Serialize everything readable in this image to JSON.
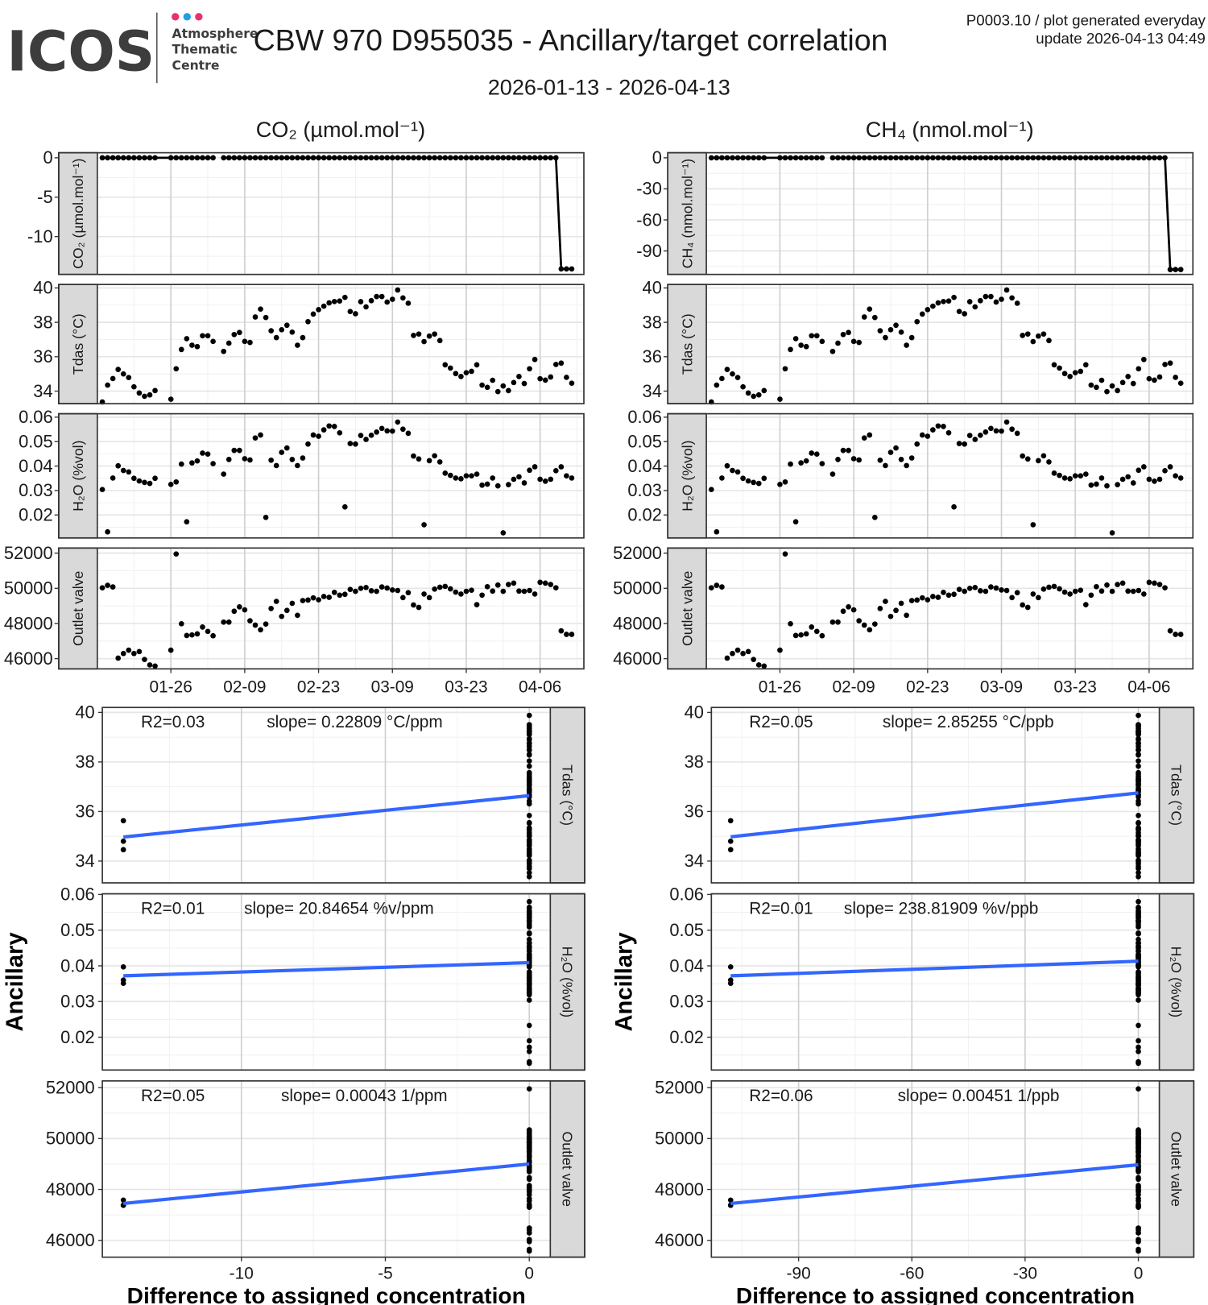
{
  "header": {
    "logo_text": "ICOS",
    "logo_sub": [
      "Atmosphere",
      "Thematic",
      "Centre"
    ],
    "logo_dot_colors": [
      "#e6336f",
      "#1fa0e3",
      "#e6336f"
    ],
    "title": "CBW 970 D955035 - Ancillary/target correlation",
    "date_range": "2026-01-13 - 2026-04-13",
    "meta_line1": "P0003.10 / plot generated everyday",
    "meta_line2": "update  2026-04-13 04:49"
  },
  "colors": {
    "points": "#000000",
    "fit_line": "#3366ff",
    "strip": "#d9d9d9",
    "border": "#333333"
  },
  "chart_data": {
    "type": "scatter",
    "time_x": {
      "start_date": "2026-01-13",
      "xlim_days": [
        -0.95,
        91.3
      ],
      "tick_days": [
        13,
        27,
        41,
        55,
        69,
        83
      ],
      "tick_labels": [
        "01-26",
        "02-09",
        "02-23",
        "03-09",
        "03-23",
        "04-06"
      ],
      "minor_days": [
        6,
        20,
        34,
        48,
        62,
        76,
        90
      ]
    },
    "days": [
      0,
      1,
      2,
      3,
      4,
      5,
      6,
      7,
      8,
      9,
      10,
      13,
      14,
      15,
      16,
      17,
      18,
      19,
      20,
      21,
      22,
      23,
      24,
      25,
      26,
      27,
      28,
      29,
      30,
      31,
      32,
      33,
      34,
      35,
      36,
      37,
      38,
      39,
      40,
      41,
      42,
      43,
      44,
      45,
      46,
      47,
      48,
      49,
      50,
      51,
      52,
      53,
      54,
      55,
      56,
      57,
      58,
      59,
      60,
      61,
      62,
      63,
      64,
      65,
      66,
      67,
      68,
      69,
      70,
      71,
      72,
      73,
      74,
      75,
      76,
      77,
      78,
      79,
      80,
      81,
      82,
      83,
      84,
      85,
      86,
      87,
      88,
      89
    ],
    "series": {
      "co2_diff": [
        0,
        0,
        0,
        0,
        0,
        0,
        0,
        0,
        0,
        0,
        0,
        0,
        0,
        0,
        0,
        0,
        0,
        0,
        0,
        0,
        null,
        0,
        0,
        0,
        0,
        0,
        0,
        0,
        0,
        0,
        0,
        0,
        0,
        0,
        0,
        0,
        0,
        0,
        0,
        0,
        0,
        0,
        0,
        0,
        0,
        0,
        0,
        0,
        0,
        0,
        0,
        0,
        0,
        0,
        0,
        0,
        0,
        0,
        0,
        0,
        0,
        0,
        0,
        0,
        0,
        0,
        0,
        0,
        0,
        0,
        0,
        0,
        0,
        0,
        0,
        0,
        0,
        0,
        0,
        0,
        0,
        0,
        0,
        0,
        0,
        -14.1,
        -14.1,
        -14.1
      ],
      "ch4_diff": [
        0,
        0,
        0,
        0,
        0,
        0,
        0,
        0,
        0,
        0,
        0,
        0,
        0,
        0,
        0,
        0,
        0,
        0,
        0,
        0,
        null,
        0,
        0,
        0,
        0,
        0,
        0,
        0,
        0,
        0,
        0,
        0,
        0,
        0,
        0,
        0,
        0,
        0,
        0,
        0,
        0,
        0,
        0,
        0,
        0,
        0,
        0,
        0,
        0,
        0,
        0,
        0,
        0,
        0,
        0,
        0,
        0,
        0,
        0,
        0,
        0,
        0,
        0,
        0,
        0,
        0,
        0,
        0,
        0,
        0,
        0,
        0,
        0,
        0,
        0,
        0,
        0,
        0,
        0,
        0,
        0,
        0,
        0,
        0,
        0,
        -108,
        -108,
        -108
      ],
      "tdas": [
        33.37,
        34.35,
        34.73,
        35.26,
        35.0,
        34.79,
        34.25,
        33.89,
        33.7,
        33.78,
        34.03,
        33.53,
        35.3,
        36.42,
        37.05,
        36.67,
        36.59,
        37.22,
        37.22,
        36.89,
        null,
        36.31,
        36.79,
        37.29,
        37.41,
        36.89,
        36.83,
        38.31,
        38.77,
        38.28,
        37.51,
        37.11,
        37.57,
        37.83,
        37.43,
        36.67,
        37.11,
        38.04,
        38.48,
        38.74,
        38.94,
        39.13,
        39.21,
        39.24,
        39.45,
        38.63,
        38.5,
        39.2,
        38.9,
        39.26,
        39.5,
        39.5,
        39.18,
        39.34,
        39.88,
        39.42,
        39.11,
        37.24,
        37.32,
        36.88,
        37.2,
        37.32,
        36.94,
        35.53,
        35.34,
        35.02,
        34.85,
        35.07,
        35.15,
        35.53,
        34.35,
        34.22,
        34.63,
        33.97,
        34.3,
        34.03,
        34.5,
        34.85,
        34.44,
        35.3,
        35.84,
        34.72,
        34.64,
        34.82,
        35.55,
        35.63,
        34.8,
        34.46
      ],
      "h2o": [
        0.0304,
        0.0131,
        0.0351,
        0.0401,
        0.0382,
        0.0376,
        0.035,
        0.0339,
        0.0333,
        0.0329,
        0.035,
        0.0325,
        0.0335,
        0.0408,
        0.0172,
        0.0413,
        0.0421,
        0.0453,
        0.0449,
        0.041,
        null,
        0.0367,
        0.0427,
        0.0464,
        0.0464,
        0.043,
        0.0425,
        0.0515,
        0.0527,
        0.019,
        0.0424,
        0.0402,
        0.0456,
        0.0474,
        0.0427,
        0.0402,
        0.0433,
        0.049,
        0.0527,
        0.0522,
        0.0548,
        0.0564,
        0.0562,
        0.0536,
        0.0233,
        0.0492,
        0.049,
        0.0525,
        0.0509,
        0.0526,
        0.0539,
        0.0554,
        0.0544,
        0.0543,
        0.058,
        0.0551,
        0.0534,
        0.0441,
        0.0429,
        0.016,
        0.0422,
        0.0442,
        0.0417,
        0.0371,
        0.0362,
        0.0351,
        0.0348,
        0.036,
        0.036,
        0.0367,
        0.0322,
        0.0326,
        0.0351,
        0.0319,
        0.0127,
        0.0324,
        0.0346,
        0.0356,
        0.0331,
        0.0383,
        0.0397,
        0.0346,
        0.0338,
        0.0346,
        0.0381,
        0.0397,
        0.036,
        0.0351
      ],
      "outlet_valve": [
        50030,
        50170,
        50077,
        46031,
        46295,
        46481,
        46295,
        46403,
        45953,
        45643,
        45581,
        46481,
        51952,
        47984,
        47318,
        47349,
        47411,
        47798,
        47550,
        47302,
        null,
        48077,
        48077,
        48697,
        48945,
        48775,
        48155,
        47907,
        47643,
        47969,
        48852,
        49255,
        48403,
        48744,
        49147,
        48465,
        49302,
        49333,
        49457,
        49348,
        49534,
        49488,
        49767,
        49612,
        49658,
        49937,
        49829,
        50000,
        50046,
        49860,
        49829,
        50077,
        50015,
        49906,
        49875,
        49472,
        49751,
        49054,
        48914,
        49674,
        49472,
        49953,
        50061,
        50108,
        49968,
        49782,
        49674,
        49829,
        49891,
        49069,
        49612,
        50092,
        49844,
        50185,
        49829,
        50216,
        50294,
        49844,
        49829,
        49875,
        49674,
        50340,
        50294,
        50216,
        50030,
        47581,
        47380,
        47380
      ]
    },
    "ancillary": [
      {
        "key": "tdas",
        "label": "Tdas (°C)",
        "ylim_time": [
          33.27,
          40.2
        ],
        "ylim_scatter": [
          33.12,
          40.2
        ],
        "yticks": [
          34,
          36,
          38,
          40
        ],
        "step": 2
      },
      {
        "key": "h2o",
        "label": "H₂O (%vol)",
        "ylim_time": [
          0.0106,
          0.0614
        ],
        "ylim_scatter": [
          0.0108,
          0.0602
        ],
        "yticks": [
          0.02,
          0.03,
          0.04,
          0.05,
          0.06
        ],
        "step": 0.01
      },
      {
        "key": "outlet_valve",
        "label": "Outlet valve",
        "ylim_time": [
          45420,
          52290
        ],
        "ylim_scatter": [
          45340,
          52264
        ],
        "yticks": [
          46000,
          48000,
          50000,
          52000
        ],
        "step": 2000
      }
    ],
    "columns": [
      {
        "title": "CO₂ (µmol.mol⁻¹)",
        "target_key": "co2_diff",
        "target_label": "CO₂ (µmol.mol⁻¹)",
        "target_ylim": [
          -14.8,
          0.64
        ],
        "target_yticks": [
          0,
          -5,
          -10
        ],
        "target_step": 5,
        "scatter_xlim": [
          -14.83,
          0.73
        ],
        "scatter_xticks": [
          -10,
          -5,
          0
        ],
        "scatter_xstep": 5,
        "fits": [
          {
            "r2": "R2=0.03",
            "slope": "slope= 0.22809 °C/ppm",
            "x0": -14.1,
            "y0": 34.97,
            "x1": 0,
            "y1": 36.64
          },
          {
            "r2": "R2=0.01",
            "slope": "slope= 20.84654 %v/ppm",
            "x0": -14.1,
            "y0": 0.0372,
            "x1": 0,
            "y1": 0.0409
          },
          {
            "r2": "R2=0.05",
            "slope": "slope= 0.00043 1/ppm",
            "x0": -14.1,
            "y0": 47450,
            "x1": 0,
            "y1": 49000
          }
        ]
      },
      {
        "title": "CH₄ (nmol.mol⁻¹)",
        "target_key": "ch4_diff",
        "target_label": "CH₄ (nmol.mol⁻¹)",
        "target_ylim": [
          -112.7,
          4.9
        ],
        "target_yticks": [
          0,
          -30,
          -60,
          -90
        ],
        "target_step": 30,
        "scatter_xlim": [
          -113.1,
          5.56
        ],
        "scatter_xticks": [
          -90,
          -60,
          -30,
          0
        ],
        "scatter_xstep": 30,
        "fits": [
          {
            "r2": "R2=0.05",
            "slope": "slope= 2.85255 °C/ppb",
            "x0": -108,
            "y0": 34.98,
            "x1": 0,
            "y1": 36.75
          },
          {
            "r2": "R2=0.01",
            "slope": "slope= 238.81909 %v/ppb",
            "x0": -108,
            "y0": 0.0372,
            "x1": 0,
            "y1": 0.0413
          },
          {
            "r2": "R2=0.06",
            "slope": "slope= 0.00451 1/ppb",
            "x0": -108,
            "y0": 47450,
            "x1": 0,
            "y1": 48970
          }
        ]
      }
    ],
    "xlabel": "Difference to assigned concentration",
    "ylabel": "Ancillary"
  }
}
